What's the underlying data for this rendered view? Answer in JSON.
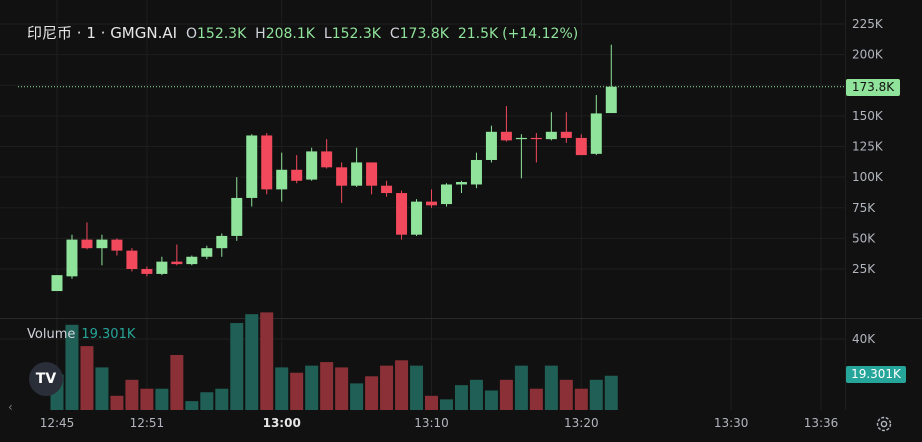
{
  "legend": {
    "symbol": "印尼币",
    "interval": "1",
    "source": "GMGN.AI",
    "open_label": "O",
    "open": "152.3K",
    "high_label": "H",
    "high": "208.1K",
    "low_label": "L",
    "low": "152.3K",
    "close_label": "C",
    "close": "173.8K",
    "change": "21.5K",
    "change_pct": "(+14.12%)"
  },
  "volume_legend": {
    "label": "Volume",
    "value": "19.301K"
  },
  "price_tag": "173.8K",
  "volume_tag": "19.301K",
  "logo": "TV",
  "icons": {
    "settings": "gear-icon",
    "logo": "tradingview-logo-icon",
    "scroll": "chevron-left-icon"
  },
  "colors": {
    "up": "#8fe39a",
    "down": "#f2495c",
    "up_volume": "#1f5f55",
    "down_volume": "#8a3036",
    "grid": "#1e1e1e",
    "background": "#111111"
  },
  "chart_data": {
    "type": "candlestick",
    "x_ticks": [
      "12:45",
      "12:51",
      "13:00",
      "13:10",
      "13:20",
      "13:30",
      "13:36"
    ],
    "x_tick_minutes": [
      0,
      6,
      15,
      25,
      35,
      45,
      51
    ],
    "y_ticks": [
      "25K",
      "50K",
      "75K",
      "100K",
      "125K",
      "150K",
      "175K",
      "200K",
      "225K"
    ],
    "y_tick_values": [
      25000,
      50000,
      75000,
      100000,
      125000,
      150000,
      175000,
      200000,
      225000
    ],
    "volume_ticks": [
      "40K"
    ],
    "volume_tick_values": [
      40000
    ],
    "candles": [
      {
        "t": "12:45",
        "o": 7000,
        "h": 20000,
        "l": 7000,
        "c": 20000,
        "vol": 20000
      },
      {
        "t": "12:46",
        "o": 19000,
        "h": 53000,
        "l": 17000,
        "c": 49000,
        "vol": 48000
      },
      {
        "t": "12:47",
        "o": 49000,
        "h": 63000,
        "l": 41000,
        "c": 42000,
        "vol": 36000
      },
      {
        "t": "12:48",
        "o": 42000,
        "h": 53000,
        "l": 28000,
        "c": 49000,
        "vol": 24000
      },
      {
        "t": "12:49",
        "o": 49000,
        "h": 50000,
        "l": 36000,
        "c": 40000,
        "vol": 8000
      },
      {
        "t": "12:50",
        "o": 40000,
        "h": 42000,
        "l": 23000,
        "c": 25000,
        "vol": 17000
      },
      {
        "t": "12:51",
        "o": 25000,
        "h": 27000,
        "l": 19000,
        "c": 21000,
        "vol": 12000
      },
      {
        "t": "12:52",
        "o": 21000,
        "h": 35000,
        "l": 20000,
        "c": 31000,
        "vol": 12000
      },
      {
        "t": "12:53",
        "o": 31000,
        "h": 45000,
        "l": 28000,
        "c": 29000,
        "vol": 31000
      },
      {
        "t": "12:54",
        "o": 29000,
        "h": 36000,
        "l": 28000,
        "c": 35000,
        "vol": 5000
      },
      {
        "t": "12:55",
        "o": 35000,
        "h": 44000,
        "l": 33000,
        "c": 42000,
        "vol": 10000
      },
      {
        "t": "12:56",
        "o": 42000,
        "h": 54000,
        "l": 35000,
        "c": 52000,
        "vol": 12000
      },
      {
        "t": "12:57",
        "o": 52000,
        "h": 100000,
        "l": 48000,
        "c": 83000,
        "vol": 49000
      },
      {
        "t": "12:58",
        "o": 83000,
        "h": 135000,
        "l": 76000,
        "c": 134000,
        "vol": 54000
      },
      {
        "t": "12:59",
        "o": 134000,
        "h": 136000,
        "l": 86000,
        "c": 90000,
        "vol": 55000
      },
      {
        "t": "13:00",
        "o": 90000,
        "h": 120000,
        "l": 80000,
        "c": 106000,
        "vol": 24000
      },
      {
        "t": "13:01",
        "o": 106000,
        "h": 118000,
        "l": 95000,
        "c": 97000,
        "vol": 21000
      },
      {
        "t": "13:02",
        "o": 98000,
        "h": 124000,
        "l": 97000,
        "c": 121000,
        "vol": 25000
      },
      {
        "t": "13:03",
        "o": 121000,
        "h": 131000,
        "l": 107000,
        "c": 108000,
        "vol": 27000
      },
      {
        "t": "13:04",
        "o": 108000,
        "h": 112000,
        "l": 79000,
        "c": 93000,
        "vol": 24000
      },
      {
        "t": "13:05",
        "o": 93000,
        "h": 124000,
        "l": 92000,
        "c": 112000,
        "vol": 15000
      },
      {
        "t": "13:06",
        "o": 112000,
        "h": 112000,
        "l": 86000,
        "c": 93000,
        "vol": 19000
      },
      {
        "t": "13:07",
        "o": 93000,
        "h": 97000,
        "l": 84000,
        "c": 87000,
        "vol": 25000
      },
      {
        "t": "13:08",
        "o": 87000,
        "h": 89000,
        "l": 49000,
        "c": 53000,
        "vol": 28000
      },
      {
        "t": "13:09",
        "o": 53000,
        "h": 82000,
        "l": 52000,
        "c": 80000,
        "vol": 25000
      },
      {
        "t": "13:10",
        "o": 80000,
        "h": 90000,
        "l": 75000,
        "c": 77000,
        "vol": 8000
      },
      {
        "t": "13:11",
        "o": 78000,
        "h": 95000,
        "l": 76000,
        "c": 94000,
        "vol": 6000
      },
      {
        "t": "13:12",
        "o": 94000,
        "h": 97000,
        "l": 87000,
        "c": 96000,
        "vol": 14000
      },
      {
        "t": "13:13",
        "o": 94000,
        "h": 120000,
        "l": 91000,
        "c": 114000,
        "vol": 17000
      },
      {
        "t": "13:14",
        "o": 114000,
        "h": 142000,
        "l": 112000,
        "c": 137000,
        "vol": 11000
      },
      {
        "t": "13:15",
        "o": 137000,
        "h": 158000,
        "l": 129000,
        "c": 130000,
        "vol": 17000
      },
      {
        "t": "13:16",
        "o": 131000,
        "h": 135000,
        "l": 99000,
        "c": 132000,
        "vol": 25000
      },
      {
        "t": "13:17",
        "o": 132000,
        "h": 136000,
        "l": 112000,
        "c": 131000,
        "vol": 12000
      },
      {
        "t": "13:18",
        "o": 131000,
        "h": 153000,
        "l": 130000,
        "c": 137000,
        "vol": 25000
      },
      {
        "t": "13:19",
        "o": 137000,
        "h": 153000,
        "l": 128000,
        "c": 132000,
        "vol": 17000
      },
      {
        "t": "13:20",
        "o": 132000,
        "h": 135000,
        "l": 118000,
        "c": 118000,
        "vol": 12000
      },
      {
        "t": "13:21",
        "o": 119000,
        "h": 167000,
        "l": 118000,
        "c": 152000,
        "vol": 17000
      },
      {
        "t": "13:22",
        "o": 152300,
        "h": 208100,
        "l": 152300,
        "c": 173800,
        "vol": 19301
      }
    ]
  }
}
